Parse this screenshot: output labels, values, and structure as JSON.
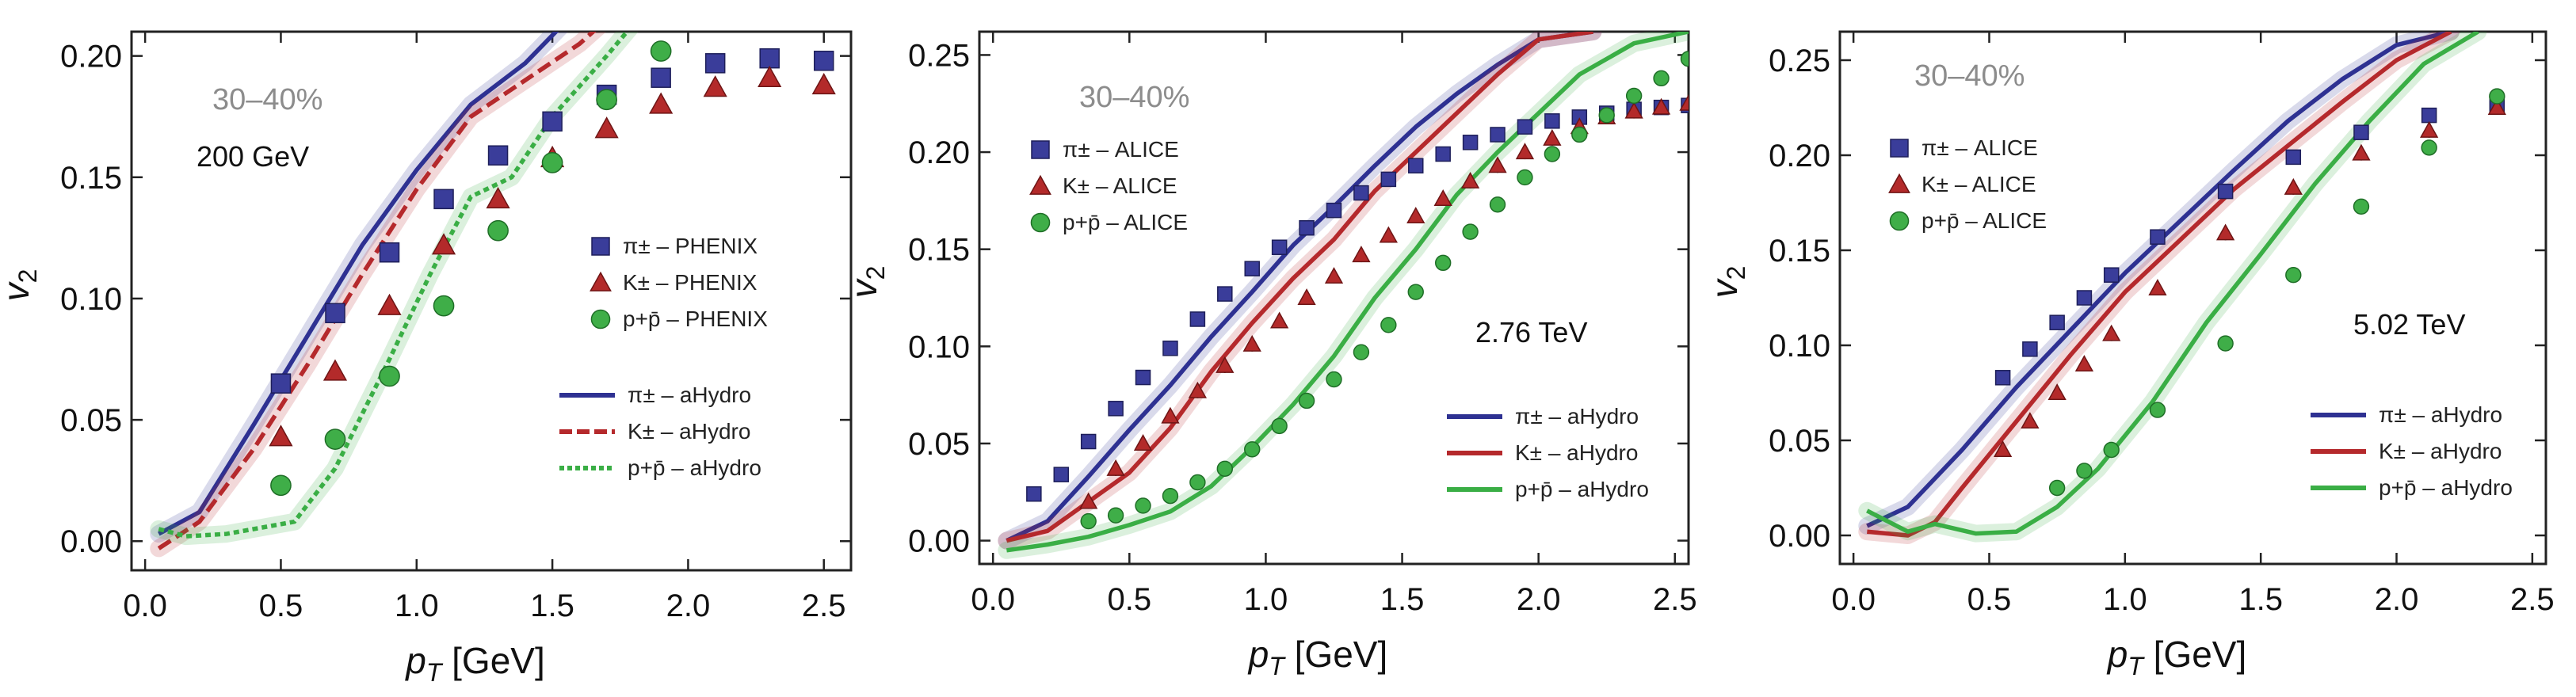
{
  "chart_data": [
    {
      "type": "line",
      "centrality": "30–40%",
      "energy": "200 GeV",
      "xlabel": "p_T [GeV]",
      "ylabel": "v_2",
      "xlim": [
        -0.05,
        2.6
      ],
      "ylim": [
        -0.012,
        0.21
      ],
      "xticks": [
        0.0,
        0.5,
        1.0,
        1.5,
        2.0,
        2.5
      ],
      "xtick_labels": [
        "0.0",
        "0.5",
        "1.0",
        "1.5",
        "2.0",
        "2.5"
      ],
      "yticks": [
        0.0,
        0.05,
        0.1,
        0.15,
        0.2
      ],
      "ytick_labels": [
        "0.00",
        "0.05",
        "0.10",
        "0.15",
        "0.20"
      ],
      "marker_series": [
        {
          "name": "π± – PHENIX",
          "marker": "square",
          "color": "#3a3d9a",
          "x": [
            0.5,
            0.7,
            0.9,
            1.1,
            1.3,
            1.5,
            1.7,
            1.9,
            2.1,
            2.3,
            2.5
          ],
          "y": [
            0.065,
            0.094,
            0.119,
            0.141,
            0.159,
            0.173,
            0.184,
            0.191,
            0.197,
            0.199,
            0.198
          ]
        },
        {
          "name": "K± – PHENIX",
          "marker": "triangle",
          "color": "#b32a2a",
          "x": [
            0.5,
            0.7,
            0.9,
            1.1,
            1.3,
            1.5,
            1.7,
            1.9,
            2.1,
            2.3,
            2.5
          ],
          "y": [
            0.043,
            0.07,
            0.097,
            0.122,
            0.141,
            0.158,
            0.17,
            0.18,
            0.187,
            0.191,
            0.188
          ]
        },
        {
          "name": "p+p̄ – PHENIX",
          "marker": "circle",
          "color": "#3fae48",
          "x": [
            0.5,
            0.7,
            0.9,
            1.1,
            1.3,
            1.5,
            1.7,
            1.9
          ],
          "y": [
            0.023,
            0.042,
            0.068,
            0.097,
            0.128,
            0.156,
            0.182,
            0.202
          ]
        }
      ],
      "line_series": [
        {
          "name": "π± – aHydro",
          "style": "solid",
          "color": "#2e3192",
          "x": [
            0.05,
            0.2,
            0.4,
            0.6,
            0.8,
            1.0,
            1.2,
            1.4,
            1.6
          ],
          "y": [
            0.003,
            0.012,
            0.048,
            0.085,
            0.122,
            0.153,
            0.18,
            0.197,
            0.22
          ]
        },
        {
          "name": "K± – aHydro",
          "style": "dashed",
          "color": "#b5292c",
          "x": [
            0.05,
            0.2,
            0.4,
            0.6,
            0.8,
            1.0,
            1.2,
            1.4,
            1.6,
            1.75
          ],
          "y": [
            -0.003,
            0.008,
            0.038,
            0.073,
            0.11,
            0.145,
            0.175,
            0.19,
            0.205,
            0.22
          ]
        },
        {
          "name": "p+p̄ – aHydro",
          "style": "dotted",
          "color": "#3aae45",
          "x": [
            0.05,
            0.15,
            0.3,
            0.55,
            0.7,
            0.9,
            1.05,
            1.2,
            1.35,
            1.5,
            1.7,
            1.85
          ],
          "y": [
            0.005,
            0.002,
            0.003,
            0.008,
            0.03,
            0.075,
            0.11,
            0.142,
            0.15,
            0.175,
            0.2,
            0.22
          ]
        }
      ]
    },
    {
      "type": "line",
      "centrality": "30–40%",
      "energy": "2.76 TeV",
      "xlabel": "p_T [GeV]",
      "ylabel": "v_2",
      "xlim": [
        -0.05,
        2.55
      ],
      "ylim": [
        -0.012,
        0.262
      ],
      "xticks": [
        0.0,
        0.5,
        1.0,
        1.5,
        2.0,
        2.5
      ],
      "xtick_labels": [
        "0.0",
        "0.5",
        "1.0",
        "1.5",
        "2.0",
        "2.5"
      ],
      "yticks": [
        0.0,
        0.05,
        0.1,
        0.15,
        0.2,
        0.25
      ],
      "ytick_labels": [
        "0.00",
        "0.05",
        "0.10",
        "0.15",
        "0.20",
        "0.25"
      ],
      "marker_series": [
        {
          "name": "π± – ALICE",
          "marker": "square",
          "color": "#3a3d9a",
          "x": [
            0.15,
            0.25,
            0.35,
            0.45,
            0.55,
            0.65,
            0.75,
            0.85,
            0.95,
            1.05,
            1.15,
            1.25,
            1.35,
            1.45,
            1.55,
            1.65,
            1.75,
            1.85,
            1.95,
            2.05,
            2.15,
            2.25,
            2.35,
            2.45,
            2.55
          ],
          "y": [
            0.024,
            0.034,
            0.051,
            0.068,
            0.084,
            0.099,
            0.114,
            0.127,
            0.14,
            0.151,
            0.161,
            0.17,
            0.179,
            0.186,
            0.193,
            0.199,
            0.205,
            0.209,
            0.213,
            0.216,
            0.218,
            0.22,
            0.222,
            0.223,
            0.224
          ]
        },
        {
          "name": "K± – ALICE",
          "marker": "triangle",
          "color": "#b32a2a",
          "x": [
            0.35,
            0.45,
            0.55,
            0.65,
            0.75,
            0.85,
            0.95,
            1.05,
            1.15,
            1.25,
            1.35,
            1.45,
            1.55,
            1.65,
            1.75,
            1.85,
            1.95,
            2.05,
            2.15,
            2.25,
            2.35,
            2.45,
            2.55
          ],
          "y": [
            0.02,
            0.037,
            0.05,
            0.064,
            0.077,
            0.09,
            0.101,
            0.113,
            0.125,
            0.136,
            0.147,
            0.157,
            0.167,
            0.176,
            0.185,
            0.193,
            0.2,
            0.207,
            0.213,
            0.218,
            0.221,
            0.223,
            0.225
          ]
        },
        {
          "name": "p+p̄ – ALICE",
          "marker": "circle",
          "color": "#3fae48",
          "x": [
            0.35,
            0.45,
            0.55,
            0.65,
            0.75,
            0.85,
            0.95,
            1.05,
            1.15,
            1.25,
            1.35,
            1.45,
            1.55,
            1.65,
            1.75,
            1.85,
            1.95,
            2.05,
            2.15,
            2.25,
            2.35,
            2.45,
            2.55
          ],
          "y": [
            0.01,
            0.013,
            0.018,
            0.023,
            0.03,
            0.037,
            0.047,
            0.059,
            0.072,
            0.083,
            0.097,
            0.111,
            0.128,
            0.143,
            0.159,
            0.173,
            0.187,
            0.199,
            0.209,
            0.219,
            0.229,
            0.238,
            0.248
          ]
        }
      ],
      "line_series": [
        {
          "name": "π± – aHydro",
          "style": "solid",
          "color": "#2e3192",
          "x": [
            0.05,
            0.2,
            0.35,
            0.5,
            0.65,
            0.8,
            0.95,
            1.1,
            1.25,
            1.4,
            1.55,
            1.7,
            1.85,
            2.0,
            2.2
          ],
          "y": [
            0.0,
            0.01,
            0.033,
            0.057,
            0.08,
            0.105,
            0.128,
            0.152,
            0.172,
            0.193,
            0.213,
            0.23,
            0.245,
            0.258,
            0.262
          ]
        },
        {
          "name": "K± – aHydro",
          "style": "solid",
          "color": "#b5292c",
          "x": [
            0.05,
            0.2,
            0.35,
            0.5,
            0.65,
            0.8,
            0.95,
            1.1,
            1.25,
            1.4,
            1.55,
            1.7,
            1.85,
            2.0,
            2.2
          ],
          "y": [
            0.0,
            0.005,
            0.02,
            0.035,
            0.058,
            0.087,
            0.112,
            0.135,
            0.155,
            0.18,
            0.2,
            0.22,
            0.24,
            0.258,
            0.262
          ]
        },
        {
          "name": "p+p̄ – aHydro",
          "style": "solid",
          "color": "#3aae45",
          "x": [
            0.05,
            0.2,
            0.35,
            0.5,
            0.65,
            0.8,
            0.95,
            1.1,
            1.25,
            1.4,
            1.55,
            1.7,
            1.85,
            2.0,
            2.15,
            2.35,
            2.55
          ],
          "y": [
            -0.005,
            -0.002,
            0.002,
            0.008,
            0.015,
            0.028,
            0.048,
            0.07,
            0.095,
            0.125,
            0.15,
            0.178,
            0.2,
            0.22,
            0.24,
            0.256,
            0.262
          ]
        }
      ]
    },
    {
      "type": "line",
      "centrality": "30–40%",
      "energy": "5.02 TeV",
      "xlabel": "p_T [GeV]",
      "ylabel": "v_2",
      "xlim": [
        -0.05,
        2.55
      ],
      "ylim": [
        -0.015,
        0.265
      ],
      "xticks": [
        0.0,
        0.5,
        1.0,
        1.5,
        2.0,
        2.5
      ],
      "xtick_labels": [
        "0.0",
        "0.5",
        "1.0",
        "1.5",
        "2.0",
        "2.5"
      ],
      "yticks": [
        0.0,
        0.05,
        0.1,
        0.15,
        0.2,
        0.25
      ],
      "ytick_labels": [
        "0.00",
        "0.05",
        "0.10",
        "0.15",
        "0.20",
        "0.25"
      ],
      "marker_series": [
        {
          "name": "π± – ALICE",
          "marker": "square",
          "color": "#3a3d9a",
          "x": [
            0.55,
            0.65,
            0.75,
            0.85,
            0.95,
            1.12,
            1.37,
            1.62,
            1.87,
            2.12,
            2.37
          ],
          "y": [
            0.083,
            0.098,
            0.112,
            0.125,
            0.137,
            0.157,
            0.181,
            0.199,
            0.212,
            0.221,
            0.226
          ]
        },
        {
          "name": "K± – ALICE",
          "marker": "triangle",
          "color": "#b32a2a",
          "x": [
            0.55,
            0.65,
            0.75,
            0.85,
            0.95,
            1.12,
            1.37,
            1.62,
            1.87,
            2.12,
            2.37
          ],
          "y": [
            0.045,
            0.06,
            0.075,
            0.09,
            0.106,
            0.13,
            0.159,
            0.183,
            0.201,
            0.213,
            0.225
          ]
        },
        {
          "name": "p+p̄ – ALICE",
          "marker": "circle",
          "color": "#3fae48",
          "x": [
            0.75,
            0.85,
            0.95,
            1.12,
            1.37,
            1.62,
            1.87,
            2.12,
            2.37
          ],
          "y": [
            0.025,
            0.034,
            0.045,
            0.066,
            0.101,
            0.137,
            0.173,
            0.204,
            0.231
          ]
        }
      ],
      "line_series": [
        {
          "name": "π± – aHydro",
          "style": "solid",
          "color": "#2e3192",
          "x": [
            0.05,
            0.2,
            0.4,
            0.6,
            0.8,
            1.0,
            1.2,
            1.4,
            1.6,
            1.8,
            2.0,
            2.2
          ],
          "y": [
            0.005,
            0.015,
            0.045,
            0.078,
            0.108,
            0.138,
            0.165,
            0.192,
            0.218,
            0.24,
            0.258,
            0.265
          ]
        },
        {
          "name": "K± – aHydro",
          "style": "solid",
          "color": "#b5292c",
          "x": [
            0.05,
            0.2,
            0.3,
            0.4,
            0.6,
            0.8,
            1.0,
            1.2,
            1.4,
            1.6,
            1.8,
            2.0,
            2.2
          ],
          "y": [
            0.002,
            0.0,
            0.007,
            0.025,
            0.06,
            0.095,
            0.128,
            0.155,
            0.182,
            0.205,
            0.228,
            0.25,
            0.265
          ]
        },
        {
          "name": "p+p̄ – aHydro",
          "style": "solid",
          "color": "#3aae45",
          "x": [
            0.05,
            0.2,
            0.3,
            0.45,
            0.6,
            0.75,
            0.9,
            1.1,
            1.3,
            1.5,
            1.7,
            1.9,
            2.1,
            2.3
          ],
          "y": [
            0.013,
            0.002,
            0.006,
            0.001,
            0.002,
            0.015,
            0.035,
            0.07,
            0.112,
            0.148,
            0.185,
            0.218,
            0.248,
            0.265
          ]
        }
      ]
    }
  ],
  "colors": {
    "pion": "#3a3d9a",
    "kaon": "#b32a2a",
    "proton": "#3fae48"
  }
}
